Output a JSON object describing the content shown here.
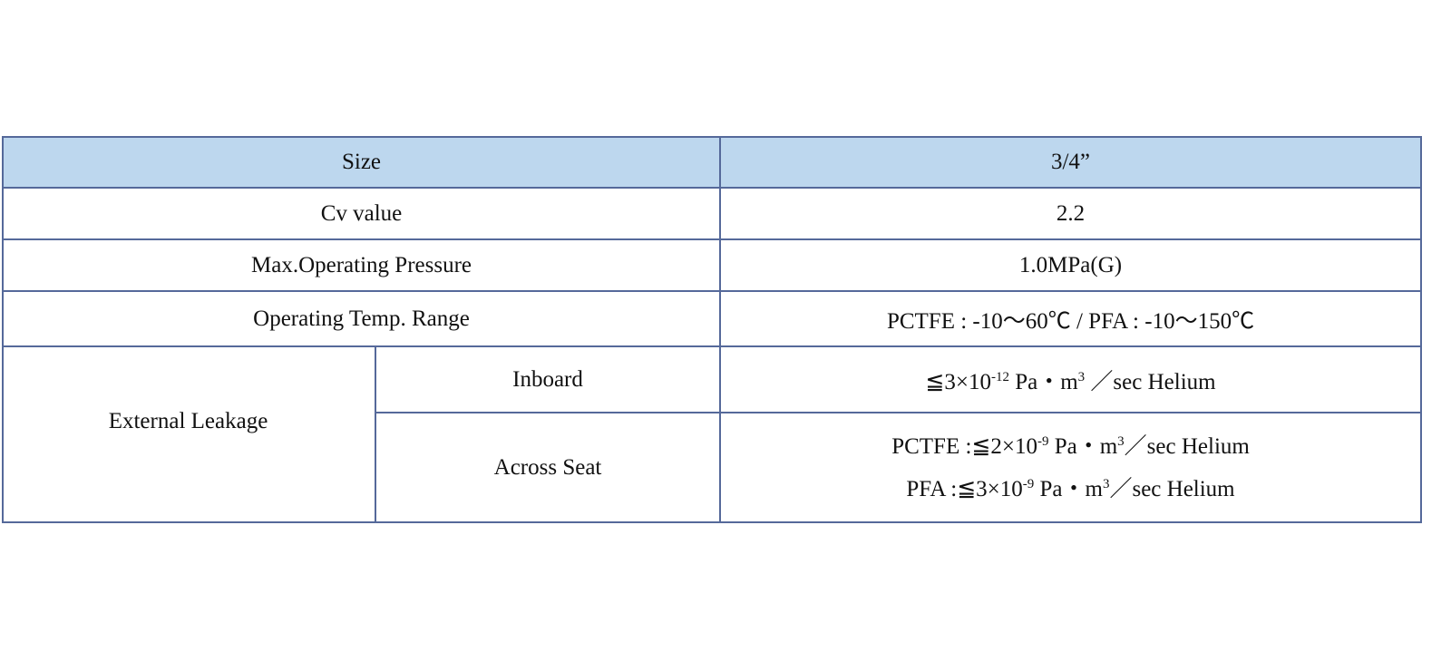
{
  "table": {
    "rows": [
      [
        "Size",
        "3/4”"
      ],
      [
        "Cv value",
        "2.2"
      ],
      [
        "Max.Operating Pressure",
        "1.0MPa(G)"
      ],
      [
        "Operating Temp. Range",
        "PCTFE : -10～60℃ / PFA : -10～150℃"
      ]
    ],
    "external_leakage": {
      "label": "External Leakage",
      "inboard": {
        "label": "Inboard",
        "value": [
          "≦3×10",
          "-12",
          " Pa・m",
          "3",
          " ／sec Helium"
        ]
      },
      "across_seat": {
        "label": "Across Seat",
        "lines": [
          [
            "PCTFE :≦2×10",
            "-9",
            " Pa・m",
            "3",
            "／sec Helium"
          ],
          [
            "PFA :≦3×10",
            "-9",
            " Pa・m",
            "3",
            "／sec Helium"
          ]
        ]
      }
    }
  }
}
